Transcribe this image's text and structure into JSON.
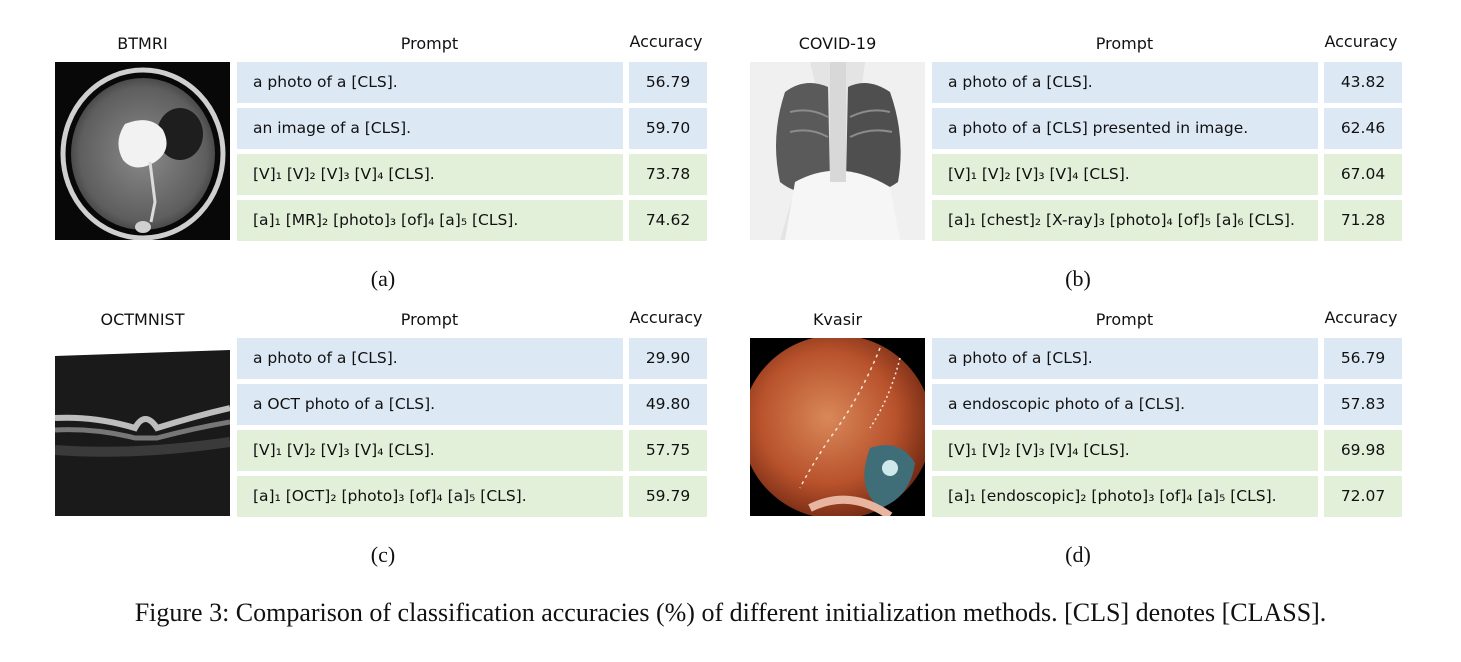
{
  "panels": [
    {
      "image_title": "BTMRI",
      "prompt_header": "Prompt",
      "accuracy_header": "Accuracy",
      "rows": [
        {
          "prompt": "a photo of a [CLS].",
          "accuracy": "56.79",
          "group": "manual"
        },
        {
          "prompt": "an image of a [CLS].",
          "accuracy": "59.70",
          "group": "manual"
        },
        {
          "prompt": "[V]₁ [V]₂ [V]₃ [V]₄ [CLS].",
          "accuracy": "73.78",
          "group": "learned"
        },
        {
          "prompt": "[a]₁ [MR]₂ [photo]₃ [of]₄ [a]₅ [CLS].",
          "accuracy": "74.62",
          "group": "learned"
        }
      ],
      "sublabel": "(a)"
    },
    {
      "image_title": "COVID-19",
      "prompt_header": "Prompt",
      "accuracy_header": "Accuracy",
      "rows": [
        {
          "prompt": "a photo of a [CLS].",
          "accuracy": "43.82",
          "group": "manual"
        },
        {
          "prompt": "a photo of a [CLS] presented in image.",
          "accuracy": "62.46",
          "group": "manual"
        },
        {
          "prompt": "[V]₁ [V]₂ [V]₃ [V]₄ [CLS].",
          "accuracy": "67.04",
          "group": "learned"
        },
        {
          "prompt": "[a]₁ [chest]₂ [X-ray]₃ [photo]₄ [of]₅ [a]₆ [CLS].",
          "accuracy": "71.28",
          "group": "learned"
        }
      ],
      "sublabel": "(b)"
    },
    {
      "image_title": "OCTMNIST",
      "prompt_header": "Prompt",
      "accuracy_header": "Accuracy",
      "rows": [
        {
          "prompt": "a photo of a [CLS].",
          "accuracy": "29.90",
          "group": "manual"
        },
        {
          "prompt": "a OCT photo of a [CLS].",
          "accuracy": "49.80",
          "group": "manual"
        },
        {
          "prompt": "[V]₁ [V]₂ [V]₃ [V]₄ [CLS].",
          "accuracy": "57.75",
          "group": "learned"
        },
        {
          "prompt": "[a]₁ [OCT]₂ [photo]₃ [of]₄ [a]₅ [CLS].",
          "accuracy": "59.79",
          "group": "learned"
        }
      ],
      "sublabel": "(c)"
    },
    {
      "image_title": "Kvasir",
      "prompt_header": "Prompt",
      "accuracy_header": "Accuracy",
      "rows": [
        {
          "prompt": "a photo of a [CLS].",
          "accuracy": "56.79",
          "group": "manual"
        },
        {
          "prompt": "a endoscopic photo of a [CLS].",
          "accuracy": "57.83",
          "group": "manual"
        },
        {
          "prompt": "[V]₁ [V]₂ [V]₃ [V]₄ [CLS].",
          "accuracy": "69.98",
          "group": "learned"
        },
        {
          "prompt": "[a]₁ [endoscopic]₂ [photo]₃ [of]₄ [a]₅ [CLS].",
          "accuracy": "72.07",
          "group": "learned"
        }
      ],
      "sublabel": "(d)"
    }
  ],
  "colors": {
    "manual_row": "#dde8f5",
    "learned_row": "#e2efd9"
  },
  "caption": "Figure 3: Comparison of classification accuracies (%) of different initialization methods. [CLS] denotes [CLASS]."
}
